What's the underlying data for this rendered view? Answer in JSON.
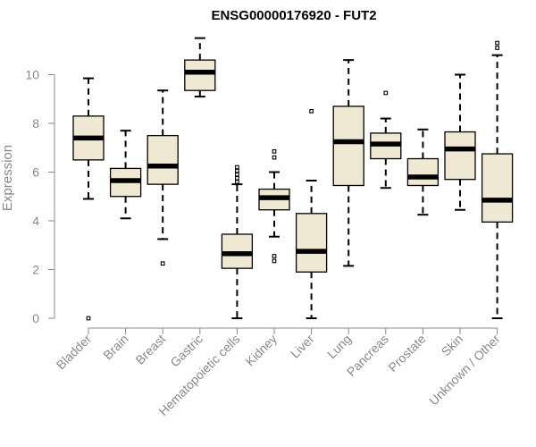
{
  "chart_data": {
    "type": "boxplot",
    "title": "ENSG00000176920 - FUT2",
    "xlabel": "",
    "ylabel": "Expression",
    "ylim": [
      0,
      11.6
    ],
    "yticks": [
      0,
      2,
      4,
      6,
      8,
      10
    ],
    "box_fill": "#efe8d2",
    "box_stroke": "#000000",
    "axis_color": "#888888",
    "categories": [
      "Bladder",
      "Brain",
      "Breast",
      "Gastric",
      "Hematopoietic cells",
      "Kidney",
      "Liver",
      "Lung",
      "Pancreas",
      "Prostate",
      "Skin",
      "Unknown / Other"
    ],
    "boxes": [
      {
        "name": "Bladder",
        "whisker_low": 4.9,
        "q1": 6.5,
        "median": 7.4,
        "q3": 8.3,
        "whisker_high": 9.85,
        "outliers": [
          0
        ]
      },
      {
        "name": "Brain",
        "whisker_low": 4.1,
        "q1": 5.0,
        "median": 5.65,
        "q3": 6.15,
        "whisker_high": 7.7,
        "outliers": []
      },
      {
        "name": "Breast",
        "whisker_low": 3.25,
        "q1": 5.5,
        "median": 6.25,
        "q3": 7.5,
        "whisker_high": 9.35,
        "outliers": [
          2.25
        ]
      },
      {
        "name": "Gastric",
        "whisker_low": 9.1,
        "q1": 9.35,
        "median": 10.1,
        "q3": 10.6,
        "whisker_high": 11.5,
        "outliers": []
      },
      {
        "name": "Hematopoietic cells",
        "whisker_low": 0,
        "q1": 2.05,
        "median": 2.65,
        "q3": 3.45,
        "whisker_high": 5.5,
        "outliers": [
          5.6,
          5.75,
          5.9,
          6.05,
          6.2
        ]
      },
      {
        "name": "Kidney",
        "whisker_low": 3.35,
        "q1": 4.45,
        "median": 4.95,
        "q3": 5.3,
        "whisker_high": 6.0,
        "outliers": [
          2.35,
          2.55,
          6.6,
          6.85
        ]
      },
      {
        "name": "Liver",
        "whisker_low": 0,
        "q1": 1.9,
        "median": 2.75,
        "q3": 4.3,
        "whisker_high": 5.65,
        "outliers": [
          8.5
        ]
      },
      {
        "name": "Lung",
        "whisker_low": 2.15,
        "q1": 5.45,
        "median": 7.25,
        "q3": 8.7,
        "whisker_high": 10.6,
        "outliers": []
      },
      {
        "name": "Pancreas",
        "whisker_low": 5.35,
        "q1": 6.55,
        "median": 7.15,
        "q3": 7.6,
        "whisker_high": 8.2,
        "outliers": [
          9.25
        ]
      },
      {
        "name": "Prostate",
        "whisker_low": 4.25,
        "q1": 5.45,
        "median": 5.8,
        "q3": 6.55,
        "whisker_high": 7.75,
        "outliers": []
      },
      {
        "name": "Skin",
        "whisker_low": 4.45,
        "q1": 5.7,
        "median": 6.95,
        "q3": 7.65,
        "whisker_high": 10.0,
        "outliers": []
      },
      {
        "name": "Unknown / Other",
        "whisker_low": 0,
        "q1": 3.95,
        "median": 4.85,
        "q3": 6.75,
        "whisker_high": 10.8,
        "outliers": [
          11.1,
          11.3
        ]
      }
    ]
  }
}
